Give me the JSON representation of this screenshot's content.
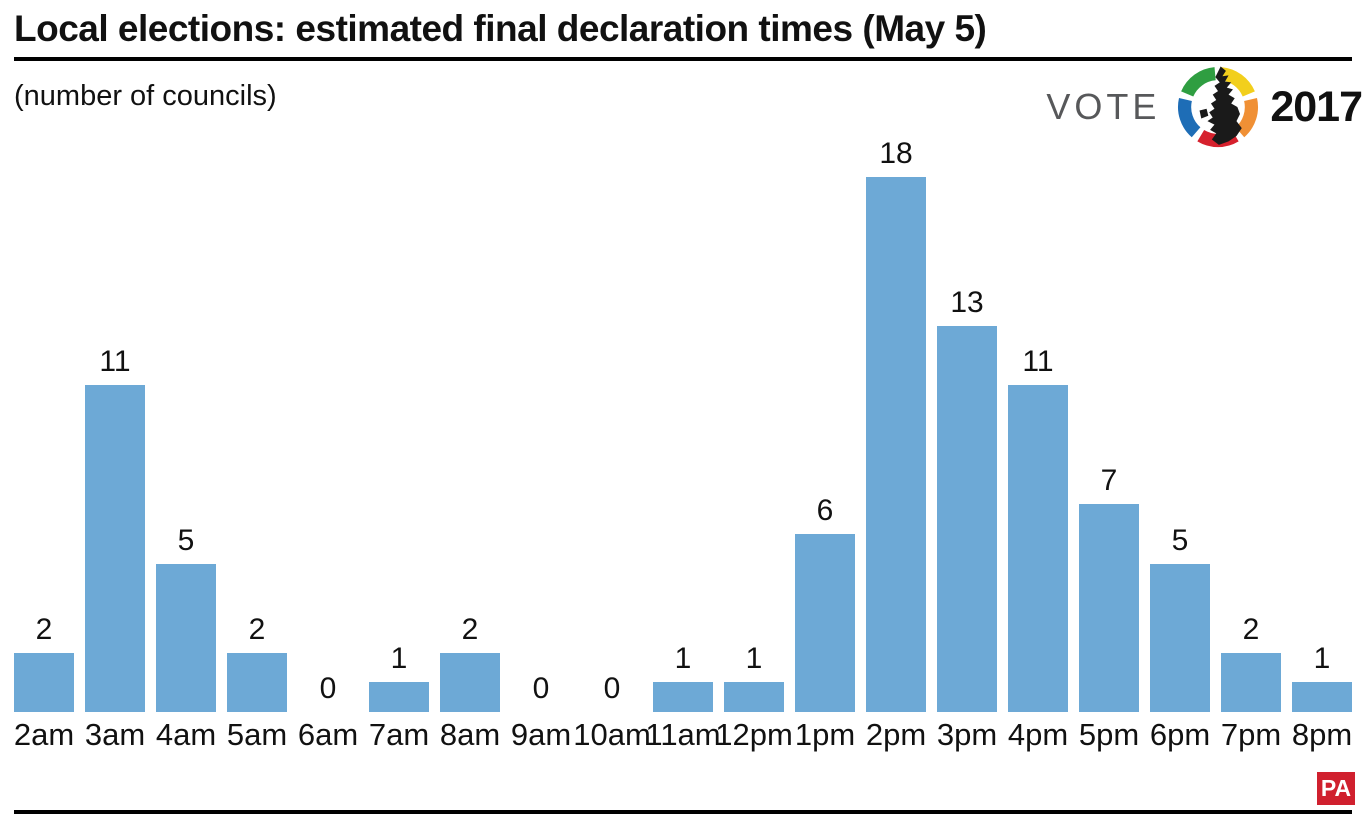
{
  "header": {
    "title": "Local elections: estimated final declaration times (May 5)",
    "subtitle": "(number of councils)",
    "logo": {
      "vote": "VOTE",
      "year": "2017",
      "icon": "uk-map-ring-icon",
      "ring_colors": {
        "green": "#2f9e41",
        "yellow": "#f2cf1c",
        "orange": "#f09035",
        "red": "#d6212d",
        "blue": "#1e6db6"
      },
      "map_color": "#1a1a1a",
      "vote_text_color": "#57585a"
    }
  },
  "footer": {
    "pa": "PA",
    "pa_bg_color": "#d0202e"
  },
  "chart_data": {
    "type": "bar",
    "title": "Local elections: estimated final declaration times (May 5)",
    "subtitle": "(number of councils)",
    "xlabel": "",
    "ylabel": "number of councils",
    "categories": [
      "2am",
      "3am",
      "4am",
      "5am",
      "6am",
      "7am",
      "8am",
      "9am",
      "10am",
      "11am",
      "12pm",
      "1pm",
      "2pm",
      "3pm",
      "4pm",
      "5pm",
      "6pm",
      "7pm",
      "8pm"
    ],
    "values": [
      2,
      11,
      5,
      2,
      0,
      1,
      2,
      0,
      0,
      1,
      1,
      6,
      18,
      13,
      11,
      7,
      5,
      2,
      1
    ],
    "ylim": [
      0,
      18
    ],
    "grid": false,
    "axis_lines": false,
    "value_labels": "above each bar",
    "bar_color": "#6da9d6",
    "legend": "none"
  }
}
